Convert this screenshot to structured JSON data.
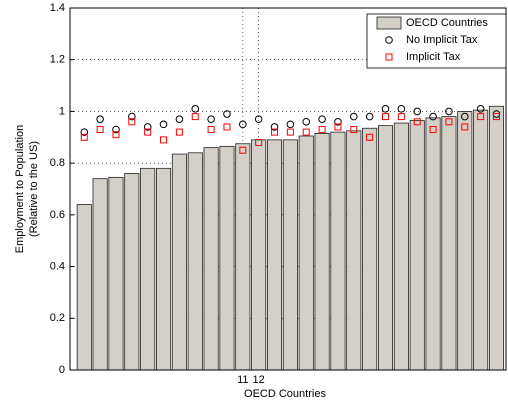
{
  "chart_data": {
    "type": "bar",
    "xlabel": "OECD Countries",
    "ylabel": [
      "Employment to Population",
      "(Relative to the US)"
    ],
    "x": [
      1,
      2,
      3,
      4,
      5,
      6,
      7,
      8,
      9,
      10,
      11,
      12,
      13,
      14,
      15,
      16,
      17,
      18,
      19,
      20,
      21,
      22,
      23,
      24,
      25,
      26,
      27
    ],
    "series": [
      {
        "name": "OECD Countries",
        "type": "bar",
        "color": "#d4d0c8",
        "values": [
          0.64,
          0.74,
          0.745,
          0.76,
          0.78,
          0.78,
          0.835,
          0.84,
          0.86,
          0.865,
          0.875,
          0.89,
          0.89,
          0.89,
          0.905,
          0.915,
          0.92,
          0.925,
          0.935,
          0.945,
          0.955,
          0.965,
          0.975,
          0.98,
          1.0,
          1.005,
          1.02
        ]
      },
      {
        "name": "No Implicit Tax",
        "type": "circle",
        "color": "#000000",
        "values": [
          0.92,
          0.97,
          0.93,
          0.98,
          0.94,
          0.95,
          0.97,
          1.01,
          0.97,
          0.99,
          0.95,
          0.97,
          0.94,
          0.95,
          0.96,
          0.97,
          0.96,
          0.98,
          0.98,
          1.01,
          1.01,
          1.0,
          0.98,
          1.0,
          0.98,
          1.01,
          0.99
        ]
      },
      {
        "name": "Implicit Tax",
        "type": "square",
        "color": "#ff0000",
        "values": [
          0.9,
          0.93,
          0.91,
          0.96,
          0.92,
          0.89,
          0.92,
          0.98,
          0.93,
          0.94,
          0.85,
          0.88,
          0.92,
          0.92,
          0.92,
          0.93,
          0.94,
          0.93,
          0.9,
          0.98,
          0.98,
          0.96,
          0.93,
          0.96,
          0.94,
          0.98,
          0.98
        ]
      }
    ],
    "xlim": [
      0.1,
      27.6
    ],
    "xticks": [
      11,
      12
    ],
    "ylim": [
      0,
      1.4
    ],
    "yticks": [
      0,
      0.2,
      0.4,
      0.6,
      0.8,
      1,
      1.2,
      1.4
    ],
    "grid": true,
    "legend": "upper right"
  }
}
